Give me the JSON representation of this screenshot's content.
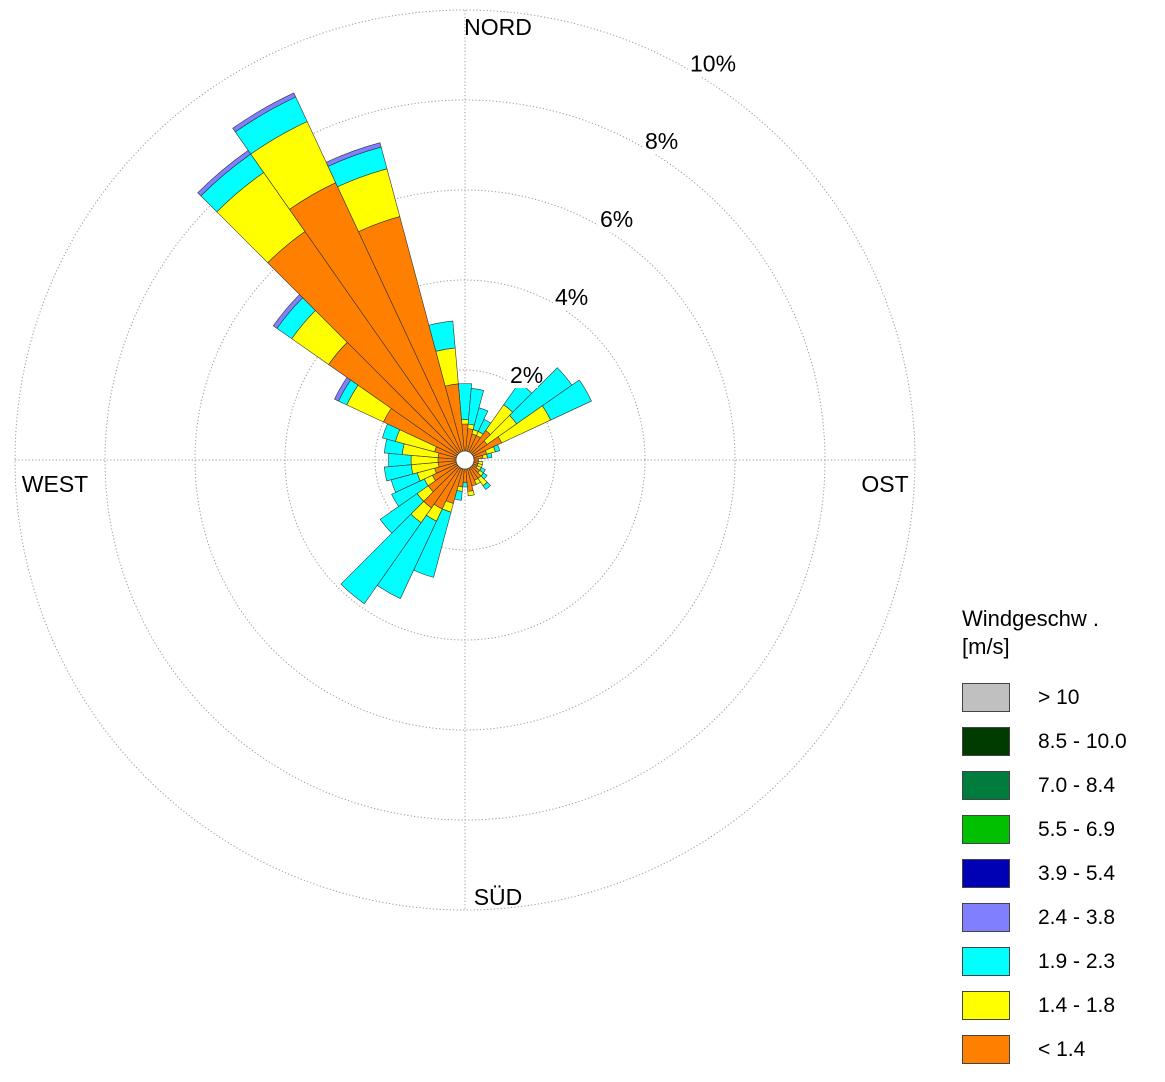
{
  "chart_data": {
    "type": "wind-rose",
    "unit": "%",
    "directions_deg": [
      0,
      10,
      20,
      30,
      40,
      50,
      60,
      70,
      80,
      90,
      100,
      110,
      120,
      130,
      140,
      150,
      160,
      170,
      180,
      190,
      200,
      210,
      220,
      230,
      240,
      250,
      260,
      270,
      280,
      290,
      300,
      310,
      320,
      330,
      340,
      350
    ],
    "direction_labels": {
      "north": "NORD",
      "east": "OST",
      "south": "SÜD",
      "west": "WEST"
    },
    "radial_ticks": [
      2,
      4,
      6,
      8,
      10
    ],
    "radial_tick_labels": [
      "2%",
      "4%",
      "6%",
      "8%",
      "10%"
    ],
    "radial_label_angle_deg": 30,
    "legend_title": [
      "Windgeschw .",
      "[m/s]"
    ],
    "speed_bins": [
      {
        "label": "> 10",
        "color": "#c0c0c0"
      },
      {
        "label": "8.5 - 10.0",
        "color": "#003c00"
      },
      {
        "label": "7.0 - 8.4",
        "color": "#007d3c"
      },
      {
        "label": "5.5 - 6.9",
        "color": "#00c000"
      },
      {
        "label": "3.9 - 5.4",
        "color": "#0000b4"
      },
      {
        "label": "2.4 - 3.8",
        "color": "#8080ff"
      },
      {
        "label": "1.9 - 2.3",
        "color": "#00ffff"
      },
      {
        "label": "1.4 - 1.8",
        "color": "#ffff00"
      },
      {
        "label": "< 1.4",
        "color": "#ff8000"
      }
    ],
    "stack_order_inner_to_outer": [
      "< 1.4",
      "1.4 - 1.8",
      "1.9 - 2.3",
      "2.4 - 3.8"
    ],
    "series": [
      {
        "name": "< 1.4",
        "values": [
          0.6,
          0.5,
          0.4,
          0.4,
          0.6,
          0.4,
          0.7,
          0.3,
          0.2,
          0.1,
          0.1,
          0.1,
          0.1,
          0.2,
          0.3,
          0.3,
          0.4,
          0.5,
          0.3,
          0.4,
          0.8,
          1.0,
          1.1,
          0.8,
          0.6,
          0.5,
          0.4,
          0.4,
          0.4,
          0.5,
          1.8,
          3.5,
          6.0,
          6.6,
          5.4,
          1.5
        ]
      },
      {
        "name": "1.4 - 1.8",
        "values": [
          0.1,
          0.1,
          0.1,
          0.1,
          0.7,
          0.8,
          1.2,
          0.2,
          0.1,
          0.0,
          0.1,
          0.1,
          0.1,
          0.1,
          0.2,
          0.1,
          0.0,
          0.1,
          0.0,
          0.1,
          0.2,
          0.3,
          0.4,
          0.3,
          0.2,
          0.4,
          0.6,
          0.6,
          0.8,
          0.9,
          0.9,
          1.0,
          1.6,
          1.5,
          1.1,
          0.8
        ]
      },
      {
        "name": "1.9 - 2.3",
        "values": [
          0.8,
          0.8,
          0.5,
          0.3,
          0.6,
          1.5,
          1.0,
          0.1,
          0.1,
          0.0,
          0.0,
          0.0,
          0.1,
          0.1,
          0.1,
          0.0,
          0.0,
          0.0,
          0.1,
          0.2,
          1.5,
          1.9,
          2.2,
          1.0,
          0.8,
          0.6,
          0.6,
          0.5,
          0.4,
          0.3,
          0.2,
          0.4,
          0.5,
          0.6,
          0.5,
          0.6
        ]
      },
      {
        "name": "2.4 - 3.8",
        "values": [
          0,
          0,
          0,
          0,
          0,
          0,
          0,
          0,
          0,
          0,
          0,
          0,
          0,
          0,
          0,
          0,
          0,
          0,
          0,
          0,
          0,
          0,
          0,
          0,
          0,
          0,
          0,
          0,
          0,
          0,
          0.1,
          0.1,
          0.1,
          0.1,
          0.1,
          0
        ]
      }
    ]
  }
}
